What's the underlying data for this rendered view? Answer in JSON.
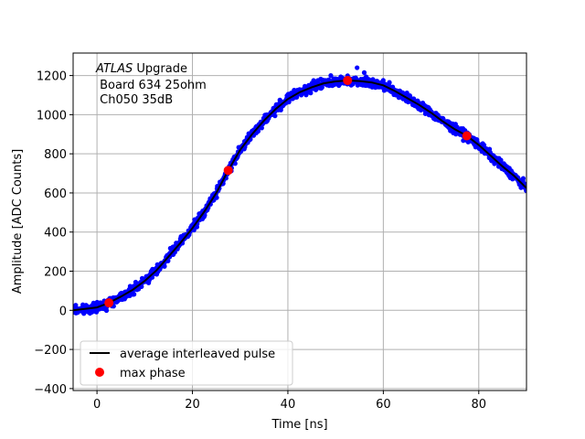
{
  "chart_data": {
    "type": "scatter",
    "title": "",
    "xlabel": "Time [ns]",
    "ylabel": "Amplitude [ADC Counts]",
    "xlim": [
      -5,
      90
    ],
    "ylim": [
      -410,
      1315
    ],
    "xticks": [
      0,
      20,
      40,
      60,
      80
    ],
    "yticks": [
      -400,
      -200,
      0,
      200,
      400,
      600,
      800,
      1000,
      1200
    ],
    "ytick_labels": [
      "−400",
      "−200",
      "0",
      "200",
      "400",
      "600",
      "800",
      "1000",
      "1200"
    ],
    "grid": true,
    "annotation": {
      "line1_italic": "ATLAS",
      "line1_rest": " Upgrade",
      "line2": " Board 634 25ohm",
      "line3": " Ch050 35dB"
    },
    "legend": {
      "placement": "lower-left",
      "entries": [
        {
          "label": "average interleaved pulse",
          "marker": "line",
          "color": "#000000"
        },
        {
          "label": "max phase",
          "marker": "circle",
          "color": "#ff0000"
        }
      ]
    },
    "colors": {
      "samples": "#0000ff",
      "average": "#000000",
      "max_phase": "#ff0000",
      "grid": "#b0b0b0"
    },
    "series": [
      {
        "name": "average interleaved pulse",
        "style": "line",
        "x": [
          -5,
          0,
          2.5,
          5,
          7.5,
          10,
          12.5,
          15,
          17.5,
          20,
          22.5,
          25,
          27.5,
          30,
          32.5,
          35,
          37.5,
          40,
          42.5,
          45,
          47.5,
          50,
          52.5,
          55,
          57.5,
          60,
          62.5,
          65,
          67.5,
          70,
          72.5,
          75,
          77.5,
          80,
          82.5,
          85,
          87.5,
          90
        ],
        "y": [
          0,
          15,
          38,
          70,
          105,
          150,
          205,
          275,
          345,
          420,
          505,
          600,
          715,
          820,
          900,
          970,
          1030,
          1080,
          1115,
          1140,
          1160,
          1170,
          1175,
          1172,
          1165,
          1150,
          1120,
          1085,
          1050,
          1010,
          965,
          925,
          892,
          845,
          790,
          735,
          685,
          625
        ]
      },
      {
        "name": "max phase",
        "style": "marker",
        "x": [
          2.5,
          27.5,
          52.5,
          77.5
        ],
        "y": [
          38,
          715,
          1175,
          892
        ]
      }
    ]
  }
}
